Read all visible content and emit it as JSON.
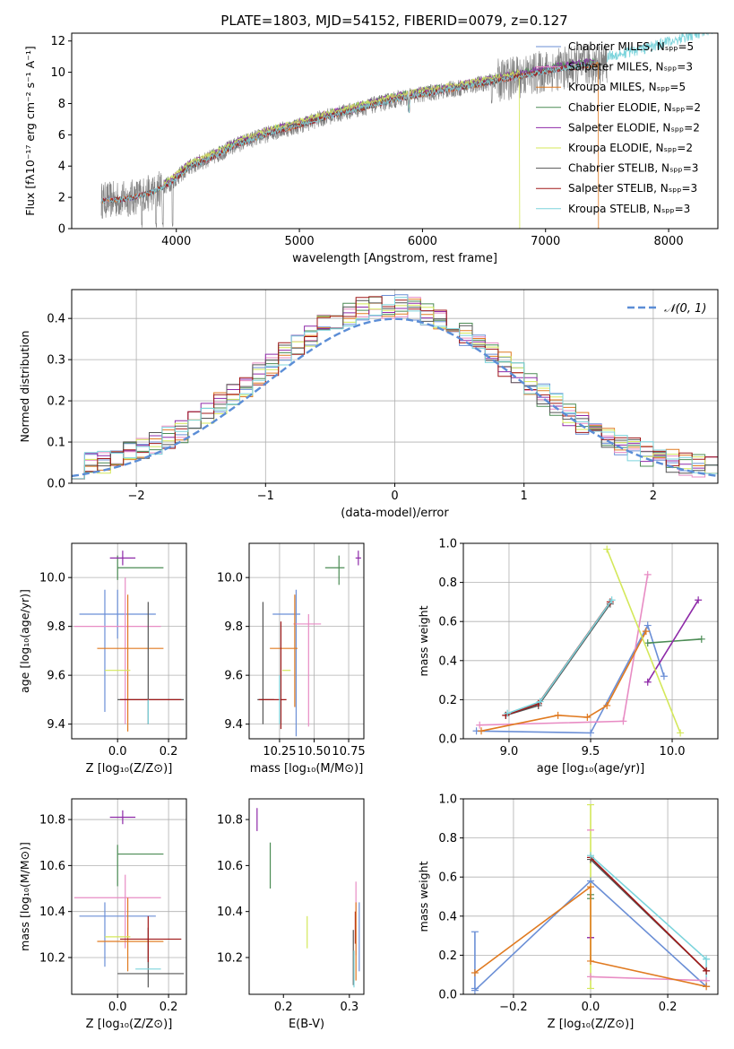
{
  "figure_title": "PLATE=1803, MJD=54152, FIBERID=0079, z=0.127",
  "colors": {
    "Chabrier MILES": "#6b8fd6",
    "Salpeter MILES": "#e88cc4",
    "Kroupa MILES": "#e07a20",
    "Chabrier ELODIE": "#4c8c55",
    "Salpeter ELODIE": "#8e2aa8",
    "Kroupa ELODIE": "#d4e85a",
    "Chabrier STELIB": "#555555",
    "Salpeter STELIB": "#a01818",
    "Kroupa STELIB": "#7cd4dc",
    "data": "#808080",
    "normal": "#5b8dd6"
  },
  "chart_data": [
    {
      "id": "spectrum",
      "type": "line",
      "title": "",
      "xlabel": "wavelength [Angstrom, rest frame]",
      "ylabel": "Flux [fλ10⁻¹⁷ erg cm⁻² s⁻¹ A⁻¹]",
      "xlim": [
        3150,
        8400
      ],
      "ylim": [
        0,
        12.5
      ],
      "xticks": [
        "4000",
        "5000",
        "6000",
        "7000",
        "8000"
      ],
      "yticks": [
        "0",
        "2",
        "4",
        "6",
        "8",
        "10",
        "12"
      ],
      "continuum": [
        [
          3390,
          1.8
        ],
        [
          3600,
          1.9
        ],
        [
          3800,
          2.3
        ],
        [
          3950,
          2.9
        ],
        [
          4100,
          3.9
        ],
        [
          4300,
          4.6
        ],
        [
          4500,
          5.4
        ],
        [
          4800,
          6.2
        ],
        [
          5000,
          6.6
        ],
        [
          5200,
          7.1
        ],
        [
          5500,
          7.7
        ],
        [
          5800,
          8.3
        ],
        [
          6000,
          8.6
        ],
        [
          6300,
          9.0
        ],
        [
          6500,
          9.3
        ],
        [
          6700,
          9.6
        ],
        [
          6900,
          9.9
        ],
        [
          7100,
          10.2
        ],
        [
          7300,
          10.4
        ],
        [
          7500,
          10.6
        ],
        [
          7800,
          11.1
        ],
        [
          8200,
          12.0
        ],
        [
          8400,
          12.5
        ]
      ],
      "dips": [
        [
          3720,
          0
        ],
        [
          3835,
          0
        ],
        [
          3890,
          0
        ],
        [
          3970,
          0
        ],
        [
          5890,
          7.5
        ],
        [
          6563,
          8.0
        ]
      ],
      "data_range": [
        3390,
        7500
      ],
      "model_range": [
        3390,
        7400
      ],
      "legend": [
        {
          "label": "Chabrier MILES, Nₛₚₚ=5",
          "nssp": "5"
        },
        {
          "label": "Salpeter MILES, Nₛₚₚ=3",
          "nssp": "3"
        },
        {
          "label": "Kroupa MILES, Nₛₚₚ=5",
          "nssp": "5"
        },
        {
          "label": "Chabrier ELODIE, Nₛₚₚ=2",
          "nssp": "2"
        },
        {
          "label": "Salpeter ELODIE, Nₛₚₚ=2",
          "nssp": "2"
        },
        {
          "label": "Kroupa ELODIE, Nₛₚₚ=2",
          "nssp": "2"
        },
        {
          "label": "Chabrier STELIB, Nₛₚₚ=3",
          "nssp": "3"
        },
        {
          "label": "Salpeter STELIB, Nₛₚₚ=3",
          "nssp": "3"
        },
        {
          "label": "Kroupa STELIB, Nₛₚₚ=3",
          "nssp": "3"
        }
      ],
      "legend_names": [
        "Chabrier MILES",
        "Salpeter MILES",
        "Kroupa MILES",
        "Chabrier ELODIE",
        "Salpeter ELODIE",
        "Kroupa ELODIE",
        "Chabrier STELIB",
        "Salpeter STELIB",
        "Kroupa STELIB"
      ]
    },
    {
      "id": "residuals",
      "type": "histogram",
      "xlabel": "(data-model)/error",
      "ylabel": "Normed distribution",
      "xlim": [
        -2.5,
        2.5
      ],
      "ylim": [
        0,
        0.47
      ],
      "xticks": [
        "−2",
        "−1",
        "0",
        "1",
        "2"
      ],
      "xtick_values": [
        -2,
        -1,
        0,
        1,
        2
      ],
      "yticks": [
        "0.0",
        "0.1",
        "0.2",
        "0.3",
        "0.4"
      ],
      "ytick_values": [
        0,
        0.1,
        0.2,
        0.3,
        0.4
      ],
      "grid": true,
      "bin_width": 0.1,
      "legend_label": "𝒩(0, 1)",
      "legend_position": "top-right"
    },
    {
      "id": "age-vs-Z",
      "type": "errorbar",
      "xlabel": "Z [log₁₀(Z/Z⊙)]",
      "ylabel": "age  [log₁₀(age/yr)]",
      "xlim": [
        -0.18,
        0.27
      ],
      "ylim": [
        9.34,
        10.14
      ],
      "xticks": [
        "0.0",
        "0.2"
      ],
      "xtick_values": [
        0,
        0.2
      ],
      "yticks": [
        "9.4",
        "9.6",
        "9.8",
        "10.0"
      ],
      "ytick_values": [
        9.4,
        9.6,
        9.8,
        10.0
      ],
      "grid": true,
      "points": [
        {
          "c": "Chabrier MILES",
          "x": 0.0,
          "xe": 0.15,
          "y": 9.85,
          "ye": 0.1
        },
        {
          "c": "Chabrier MILES",
          "x": -0.05,
          "xe": 0.0,
          "y": 9.7,
          "ye": 0.25
        },
        {
          "c": "Salpeter MILES",
          "x": 0.0,
          "xe": 0.17,
          "y": 9.8,
          "ye": 0.0
        },
        {
          "c": "Salpeter MILES",
          "x": 0.03,
          "xe": 0.0,
          "y": 9.7,
          "ye": 0.3
        },
        {
          "c": "Kroupa MILES",
          "x": 0.05,
          "xe": 0.13,
          "y": 9.71,
          "ye": 0.0
        },
        {
          "c": "Kroupa MILES",
          "x": 0.04,
          "xe": 0.0,
          "y": 9.65,
          "ye": 0.28
        },
        {
          "c": "Chabrier ELODIE",
          "x": 0.09,
          "xe": 0.09,
          "y": 10.04,
          "ye": 0.0
        },
        {
          "c": "Chabrier ELODIE",
          "x": 0.0,
          "xe": 0.0,
          "y": 10.04,
          "ye": 0.05
        },
        {
          "c": "Salpeter ELODIE",
          "x": 0.02,
          "xe": 0.05,
          "y": 10.08,
          "ye": 0.03
        },
        {
          "c": "Kroupa ELODIE",
          "x": 0.0,
          "xe": 0.05,
          "y": 9.62,
          "ye": 0.0
        },
        {
          "c": "Chabrier STELIB",
          "x": 0.13,
          "xe": 0.13,
          "y": 9.5,
          "ye": 0.0
        },
        {
          "c": "Chabrier STELIB",
          "x": 0.12,
          "xe": 0.0,
          "y": 9.65,
          "ye": 0.25
        },
        {
          "c": "Salpeter STELIB",
          "x": 0.13,
          "xe": 0.12,
          "y": 9.5,
          "ye": 0.0
        },
        {
          "c": "Kroupa STELIB",
          "x": 0.12,
          "xe": 0.0,
          "y": 9.45,
          "ye": 0.05
        }
      ]
    },
    {
      "id": "age-vs-mass",
      "type": "errorbar",
      "xlabel": "mass [log₁₀(M/M⊙)]",
      "ylabel": "",
      "xlim": [
        10.03,
        10.86
      ],
      "ylim": [
        9.34,
        10.14
      ],
      "xticks": [
        "10.25",
        "10.50",
        "10.75"
      ],
      "xtick_values": [
        10.25,
        10.5,
        10.75
      ],
      "yticks": [
        "9.4",
        "9.6",
        "9.8",
        "10.0"
      ],
      "ytick_values": [
        9.4,
        9.6,
        9.8,
        10.0
      ],
      "grid": true,
      "points": [
        {
          "c": "Chabrier MILES",
          "x": 10.37,
          "xe": 0.0,
          "y": 9.65,
          "ye": 0.3
        },
        {
          "c": "Chabrier MILES",
          "x": 10.3,
          "xe": 0.1,
          "y": 9.85,
          "ye": 0.0
        },
        {
          "c": "Salpeter MILES",
          "x": 10.45,
          "xe": 0.1,
          "y": 9.81,
          "ye": 0.0
        },
        {
          "c": "Salpeter MILES",
          "x": 10.46,
          "xe": 0.0,
          "y": 9.62,
          "ye": 0.23
        },
        {
          "c": "Kroupa MILES",
          "x": 10.28,
          "xe": 0.1,
          "y": 9.71,
          "ye": 0.0
        },
        {
          "c": "Kroupa MILES",
          "x": 10.36,
          "xe": 0.0,
          "y": 9.7,
          "ye": 0.23
        },
        {
          "c": "Chabrier ELODIE",
          "x": 10.65,
          "xe": 0.07,
          "y": 10.04,
          "ye": 0.0
        },
        {
          "c": "Chabrier ELODIE",
          "x": 10.68,
          "xe": 0.0,
          "y": 10.03,
          "ye": 0.06
        },
        {
          "c": "Salpeter ELODIE",
          "x": 10.82,
          "xe": 0.02,
          "y": 10.08,
          "ye": 0.03
        },
        {
          "c": "Kroupa ELODIE",
          "x": 10.3,
          "xe": 0.03,
          "y": 9.62,
          "ye": 0.0
        },
        {
          "c": "Chabrier STELIB",
          "x": 10.13,
          "xe": 0.0,
          "y": 9.65,
          "ye": 0.25
        },
        {
          "c": "Chabrier STELIB",
          "x": 10.15,
          "xe": 0.06,
          "y": 9.5,
          "ye": 0.0
        },
        {
          "c": "Salpeter STELIB",
          "x": 10.26,
          "xe": 0.0,
          "y": 9.6,
          "ye": 0.22
        },
        {
          "c": "Salpeter STELIB",
          "x": 10.2,
          "xe": 0.1,
          "y": 9.5,
          "ye": 0.0
        },
        {
          "c": "Kroupa STELIB",
          "x": 10.25,
          "xe": 0.0,
          "y": 9.5,
          "ye": 0.1
        }
      ]
    },
    {
      "id": "weight-vs-age",
      "type": "line",
      "xlabel": "age  [log₁₀(age/yr)]",
      "ylabel": "mass weight",
      "xlim": [
        8.72,
        10.28
      ],
      "ylim": [
        0,
        1
      ],
      "xticks": [
        "9.0",
        "9.5",
        "10.0"
      ],
      "xtick_values": [
        9.0,
        9.5,
        10.0
      ],
      "yticks": [
        "0.0",
        "0.2",
        "0.4",
        "0.6",
        "0.8",
        "1.0"
      ],
      "ytick_values": [
        0,
        0.2,
        0.4,
        0.6,
        0.8,
        1.0
      ],
      "grid": true,
      "series": [
        {
          "c": "Chabrier MILES",
          "x": [
            8.8,
            9.5,
            9.85,
            9.95
          ],
          "y": [
            0.04,
            0.03,
            0.58,
            0.32
          ]
        },
        {
          "c": "Salpeter MILES",
          "x": [
            8.82,
            9.7,
            9.85
          ],
          "y": [
            0.07,
            0.09,
            0.84
          ]
        },
        {
          "c": "Kroupa MILES",
          "x": [
            8.83,
            9.3,
            9.48,
            9.6,
            9.84
          ],
          "y": [
            0.04,
            0.12,
            0.11,
            0.17,
            0.55
          ]
        },
        {
          "c": "Chabrier ELODIE",
          "x": [
            9.85,
            10.18
          ],
          "y": [
            0.49,
            0.51
          ]
        },
        {
          "c": "Salpeter ELODIE",
          "x": [
            9.85,
            10.16
          ],
          "y": [
            0.29,
            0.71
          ]
        },
        {
          "c": "Kroupa ELODIE",
          "x": [
            9.6,
            10.05
          ],
          "y": [
            0.97,
            0.03
          ]
        },
        {
          "c": "Chabrier STELIB",
          "x": [
            8.98,
            9.18,
            9.62
          ],
          "y": [
            0.12,
            0.17,
            0.69
          ]
        },
        {
          "c": "Salpeter STELIB",
          "x": [
            8.98,
            9.18,
            9.62
          ],
          "y": [
            0.12,
            0.18,
            0.7
          ]
        },
        {
          "c": "Kroupa STELIB",
          "x": [
            8.99,
            9.19,
            9.63
          ],
          "y": [
            0.13,
            0.19,
            0.71
          ]
        }
      ]
    },
    {
      "id": "mass-vs-Z",
      "type": "errorbar",
      "xlabel": "Z [log₁₀(Z/Z⊙)]",
      "ylabel": "mass [log₁₀(M/M⊙)]",
      "xlim": [
        -0.18,
        0.27
      ],
      "ylim": [
        10.04,
        10.89
      ],
      "xticks": [
        "0.0",
        "0.2"
      ],
      "xtick_values": [
        0,
        0.2
      ],
      "yticks": [
        "10.2",
        "10.4",
        "10.6",
        "10.8"
      ],
      "ytick_values": [
        10.2,
        10.4,
        10.6,
        10.8
      ],
      "grid": true,
      "points": [
        {
          "c": "Chabrier MILES",
          "x": 0.0,
          "xe": 0.15,
          "y": 10.38,
          "ye": 0.0
        },
        {
          "c": "Chabrier MILES",
          "x": -0.05,
          "xe": 0.0,
          "y": 10.3,
          "ye": 0.14
        },
        {
          "c": "Salpeter MILES",
          "x": 0.0,
          "xe": 0.17,
          "y": 10.46,
          "ye": 0.0
        },
        {
          "c": "Salpeter MILES",
          "x": 0.03,
          "xe": 0.0,
          "y": 10.4,
          "ye": 0.16
        },
        {
          "c": "Kroupa MILES",
          "x": 0.05,
          "xe": 0.13,
          "y": 10.27,
          "ye": 0.0
        },
        {
          "c": "Kroupa MILES",
          "x": 0.04,
          "xe": 0.0,
          "y": 10.3,
          "ye": 0.16
        },
        {
          "c": "Chabrier ELODIE",
          "x": 0.09,
          "xe": 0.09,
          "y": 10.65,
          "ye": 0.0
        },
        {
          "c": "Chabrier ELODIE",
          "x": 0.0,
          "xe": 0.0,
          "y": 10.6,
          "ye": 0.09
        },
        {
          "c": "Salpeter ELODIE",
          "x": 0.02,
          "xe": 0.05,
          "y": 10.81,
          "ye": 0.03
        },
        {
          "c": "Kroupa ELODIE",
          "x": 0.0,
          "xe": 0.05,
          "y": 10.29,
          "ye": 0.0
        },
        {
          "c": "Chabrier STELIB",
          "x": 0.13,
          "xe": 0.13,
          "y": 10.13,
          "ye": 0.0
        },
        {
          "c": "Chabrier STELIB",
          "x": 0.12,
          "xe": 0.0,
          "y": 10.2,
          "ye": 0.13
        },
        {
          "c": "Salpeter STELIB",
          "x": 0.13,
          "xe": 0.12,
          "y": 10.28,
          "ye": 0.0
        },
        {
          "c": "Salpeter STELIB",
          "x": 0.12,
          "xe": 0.0,
          "y": 10.28,
          "ye": 0.1
        },
        {
          "c": "Kroupa STELIB",
          "x": 0.12,
          "xe": 0.05,
          "y": 10.15,
          "ye": 0.0
        }
      ]
    },
    {
      "id": "mass-vs-EBV",
      "type": "errorbar",
      "xlabel": "E(B-V)",
      "ylabel": "",
      "xlim": [
        0.148,
        0.322
      ],
      "ylim": [
        10.04,
        10.89
      ],
      "xticks": [
        "0.2",
        "0.3"
      ],
      "xtick_values": [
        0.2,
        0.3
      ],
      "yticks": [
        "10.2",
        "10.4",
        "10.6",
        "10.8"
      ],
      "ytick_values": [
        10.2,
        10.4,
        10.6,
        10.8
      ],
      "grid": false,
      "points": [
        {
          "c": "Salpeter ELODIE",
          "x": 0.16,
          "xe": 0.0,
          "y": 10.8,
          "ye": 0.05
        },
        {
          "c": "Chabrier ELODIE",
          "x": 0.18,
          "xe": 0.0,
          "y": 10.6,
          "ye": 0.1
        },
        {
          "c": "Kroupa ELODIE",
          "x": 0.236,
          "xe": 0.0,
          "y": 10.31,
          "ye": 0.07
        },
        {
          "c": "Salpeter MILES",
          "x": 0.31,
          "xe": 0.0,
          "y": 10.37,
          "ye": 0.16
        },
        {
          "c": "Salpeter STELIB",
          "x": 0.309,
          "xe": 0.0,
          "y": 10.33,
          "ye": 0.07
        },
        {
          "c": "Kroupa MILES",
          "x": 0.31,
          "xe": 0.0,
          "y": 10.27,
          "ye": 0.17
        },
        {
          "c": "Chabrier MILES",
          "x": 0.315,
          "xe": 0.0,
          "y": 10.29,
          "ye": 0.15
        },
        {
          "c": "Chabrier STELIB",
          "x": 0.306,
          "xe": 0.0,
          "y": 10.2,
          "ye": 0.12
        },
        {
          "c": "Kroupa STELIB",
          "x": 0.307,
          "xe": 0.0,
          "y": 10.15,
          "ye": 0.08
        }
      ]
    },
    {
      "id": "weight-vs-Z",
      "type": "line",
      "xlabel": "Z [log₁₀(Z/Z⊙)]",
      "ylabel": "mass weight",
      "xlim": [
        -0.33,
        0.33
      ],
      "ylim": [
        0,
        1
      ],
      "xticks": [
        "−0.2",
        "0.0",
        "0.2"
      ],
      "xtick_values": [
        -0.2,
        0,
        0.2
      ],
      "yticks": [
        "0.0",
        "0.2",
        "0.4",
        "0.6",
        "0.8",
        "1.0"
      ],
      "ytick_values": [
        0,
        0.2,
        0.4,
        0.6,
        0.8,
        1.0
      ],
      "grid": true,
      "series": [
        {
          "c": "Chabrier MILES",
          "x": [
            -0.3,
            0.0,
            0.3
          ],
          "y": [
            0.02,
            0.58,
            0.04
          ]
        },
        {
          "c": "Salpeter MILES",
          "x": [
            0.0,
            0.3
          ],
          "y": [
            0.09,
            0.07
          ]
        },
        {
          "c": "Kroupa MILES",
          "x": [
            -0.3,
            0.0,
            0.0,
            0.3
          ],
          "y": [
            0.11,
            0.55,
            0.17,
            0.04
          ]
        },
        {
          "c": "Chabrier STELIB",
          "x": [
            0.0,
            0.3
          ],
          "y": [
            0.69,
            0.12
          ]
        },
        {
          "c": "Salpeter STELIB",
          "x": [
            0.0,
            0.3
          ],
          "y": [
            0.7,
            0.12
          ]
        },
        {
          "c": "Kroupa STELIB",
          "x": [
            0.0,
            0.3
          ],
          "y": [
            0.71,
            0.18
          ]
        }
      ],
      "vbars": [
        {
          "c": "Chabrier MILES",
          "x": -0.3,
          "y1": 0.03,
          "y2": 0.32
        },
        {
          "c": "Kroupa ELODIE",
          "x": 0.0,
          "y1": 0.03,
          "y2": 0.97
        },
        {
          "c": "Chabrier ELODIE",
          "x": 0.0,
          "y1": 0.49,
          "y2": 0.51
        },
        {
          "c": "Salpeter ELODIE",
          "x": 0.0,
          "y1": 0.29,
          "y2": 0.29
        },
        {
          "c": "Salpeter MILES",
          "x": 0.0,
          "y1": 0.84,
          "y2": 0.84
        },
        {
          "c": "Kroupa STELIB",
          "x": 0.3,
          "y1": 0.04,
          "y2": 0.18
        }
      ]
    }
  ]
}
